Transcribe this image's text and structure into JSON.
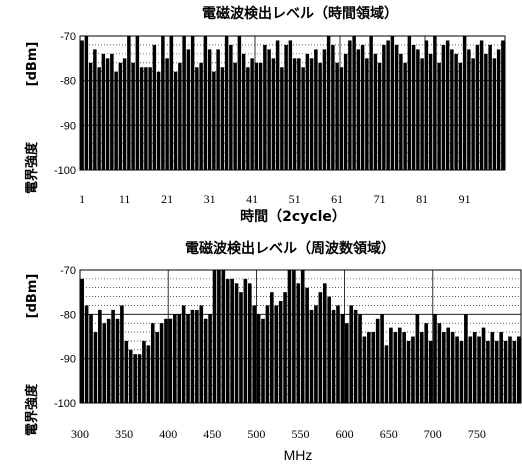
{
  "chart_data": [
    {
      "type": "bar",
      "title": "電磁波検出レベル（時間領域）",
      "xlabel": "時間（2cycle）",
      "ylabel_main": "電界強度",
      "ylabel_unit": "[dBm]",
      "ylim": [
        -100,
        -70
      ],
      "y_ticks": [
        "-70",
        "-80",
        "-90",
        "-100"
      ],
      "x_tick_labels": [
        "1",
        "11",
        "21",
        "31",
        "41",
        "51",
        "61",
        "71",
        "81",
        "91"
      ],
      "x": [
        1,
        2,
        3,
        4,
        5,
        6,
        7,
        8,
        9,
        10,
        11,
        12,
        13,
        14,
        15,
        16,
        17,
        18,
        19,
        20,
        21,
        22,
        23,
        24,
        25,
        26,
        27,
        28,
        29,
        30,
        31,
        32,
        33,
        34,
        35,
        36,
        37,
        38,
        39,
        40,
        41,
        42,
        43,
        44,
        45,
        46,
        47,
        48,
        49,
        50,
        51,
        52,
        53,
        54,
        55,
        56,
        57,
        58,
        59,
        60,
        61,
        62,
        63,
        64,
        65,
        66,
        67,
        68,
        69,
        70,
        71,
        72,
        73,
        74,
        75,
        76,
        77,
        78,
        79,
        80,
        81,
        82,
        83,
        84,
        85,
        86,
        87,
        88,
        89,
        90,
        91,
        92,
        93,
        94,
        95,
        96,
        97,
        98,
        99,
        100
      ],
      "values": [
        -71,
        -70,
        -76,
        -73,
        -77,
        -74,
        -75,
        -74,
        -78,
        -76,
        -75,
        -70,
        -76,
        -70,
        -77,
        -77,
        -77,
        -72,
        -78,
        -70,
        -75,
        -70,
        -78,
        -76,
        -70,
        -73,
        -70,
        -77,
        -76,
        -70,
        -73,
        -78,
        -73,
        -77,
        -70,
        -72,
        -76,
        -70,
        -74,
        -77,
        -75,
        -76,
        -76,
        -72,
        -73,
        -75,
        -71,
        -77,
        -72,
        -71,
        -75,
        -75,
        -77,
        -74,
        -75,
        -73,
        -76,
        -73,
        -70,
        -72,
        -76,
        -77,
        -74,
        -71,
        -70,
        -73,
        -72,
        -75,
        -70,
        -74,
        -76,
        -72,
        -71,
        -70,
        -72,
        -74,
        -76,
        -70,
        -72,
        -73,
        -75,
        -71,
        -74,
        -70,
        -76,
        -72,
        -71,
        -73,
        -74,
        -76,
        -70,
        -73,
        -75,
        -72,
        -71,
        -74,
        -72,
        -75,
        -73,
        -71
      ],
      "grid": true
    },
    {
      "type": "bar",
      "title": "電磁波検出レベル（周波数領域）",
      "xlabel": "MHz",
      "ylabel_main": "電界強度",
      "ylabel_unit": "[dBm]",
      "ylim": [
        -100,
        -70
      ],
      "y_ticks": [
        "-70",
        "-80",
        "-90",
        "-100"
      ],
      "x_tick_labels": [
        "300",
        "350",
        "400",
        "450",
        "500",
        "550",
        "600",
        "650",
        "700",
        "750"
      ],
      "x_tick_values": [
        300,
        350,
        400,
        450,
        500,
        550,
        600,
        650,
        700,
        750
      ],
      "xlim": [
        300,
        800
      ],
      "x": [
        300,
        305,
        310,
        315,
        320,
        325,
        330,
        335,
        340,
        345,
        350,
        355,
        360,
        365,
        370,
        375,
        380,
        385,
        390,
        395,
        400,
        405,
        410,
        415,
        420,
        425,
        430,
        435,
        440,
        445,
        450,
        455,
        460,
        465,
        470,
        475,
        480,
        485,
        490,
        495,
        500,
        505,
        510,
        515,
        520,
        525,
        530,
        535,
        540,
        545,
        550,
        555,
        560,
        565,
        570,
        575,
        580,
        585,
        590,
        595,
        600,
        605,
        610,
        615,
        620,
        625,
        630,
        635,
        640,
        645,
        650,
        655,
        660,
        665,
        670,
        675,
        680,
        685,
        690,
        695,
        700,
        705,
        710,
        715,
        720,
        725,
        730,
        735,
        740,
        745,
        750,
        755,
        760,
        765,
        770,
        775,
        780,
        785,
        790,
        795
      ],
      "values": [
        -72,
        -78,
        -80,
        -84,
        -79,
        -82,
        -81,
        -79,
        -81,
        -78,
        -86,
        -88,
        -89,
        -89,
        -86,
        -87,
        -82,
        -84,
        -82,
        -81,
        -81,
        -80,
        -80,
        -78,
        -80,
        -79,
        -79,
        -78,
        -81,
        -80,
        -70,
        -70,
        -70,
        -72,
        -72,
        -73,
        -75,
        -72,
        -73,
        -78,
        -80,
        -81,
        -78,
        -75,
        -78,
        -77,
        -75,
        -70,
        -70,
        -73,
        -70,
        -74,
        -79,
        -78,
        -75,
        -73,
        -76,
        -79,
        -78,
        -80,
        -82,
        -78,
        -79,
        -80,
        -85,
        -84,
        -84,
        -81,
        -80,
        -87,
        -83,
        -84,
        -83,
        -84,
        -86,
        -85,
        -80,
        -84,
        -82,
        -86,
        -80,
        -82,
        -84,
        -83,
        -84,
        -85,
        -86,
        -80,
        -85,
        -84,
        -85,
        -83,
        -86,
        -84,
        -86,
        -84,
        -86,
        -85,
        -86,
        -85
      ],
      "grid": true
    }
  ]
}
